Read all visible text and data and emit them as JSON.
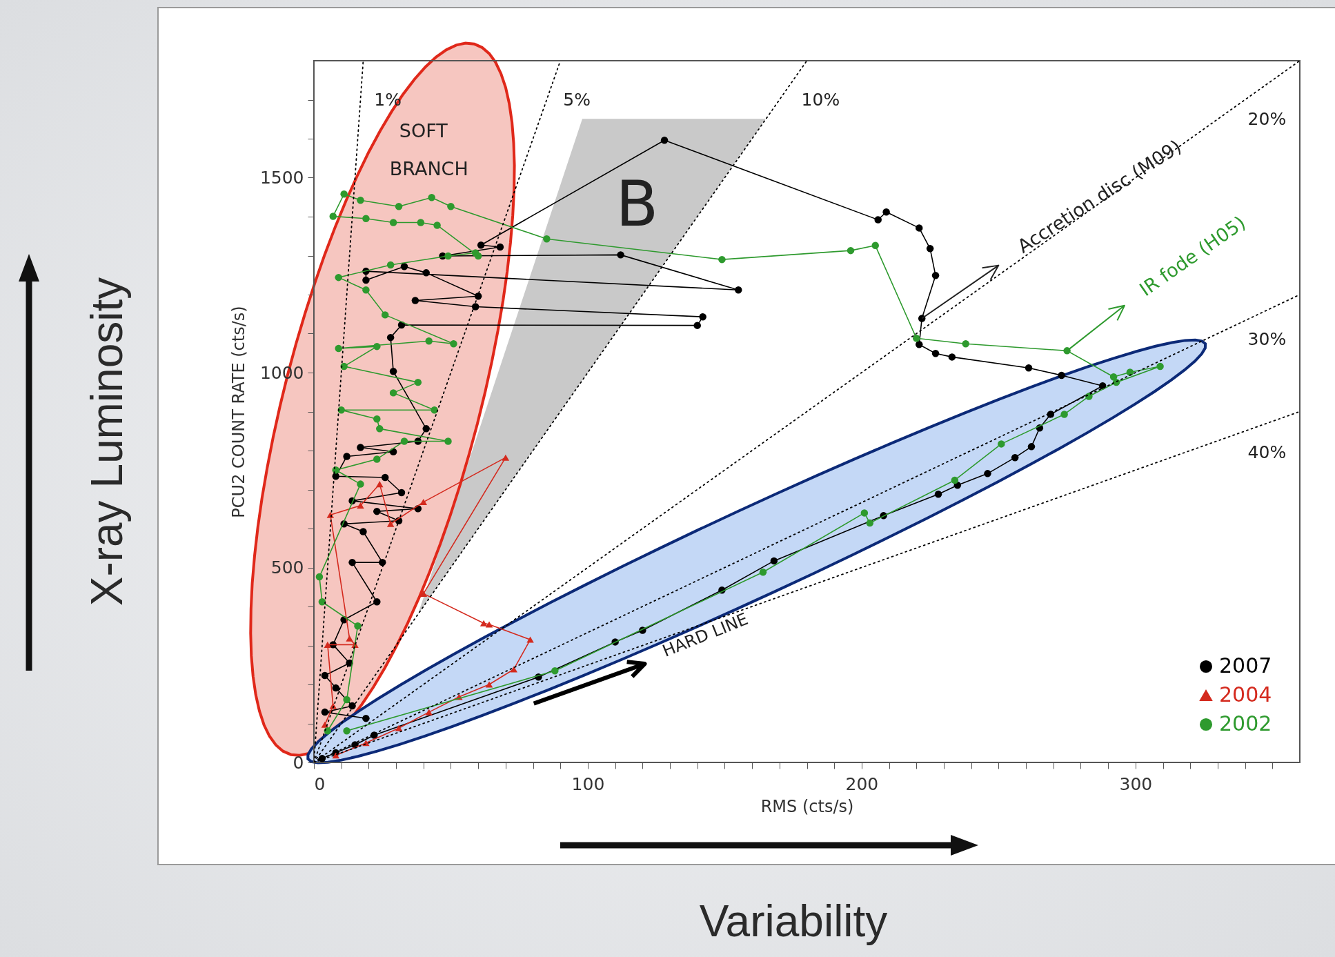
{
  "chart_data": {
    "type": "line",
    "xlabel": "RMS (cts/s)",
    "ylabel": "PCU2 COUNT RATE (cts/s)",
    "xlim": [
      0,
      360
    ],
    "ylim": [
      0,
      1800
    ],
    "xticks": [
      0,
      {
        "value": 10,
        "label": null
      },
      {
        "value": 20,
        "label": null
      },
      {
        "value": 30,
        "label": null
      },
      {
        "value": 40,
        "label": null
      },
      {
        "value": 50,
        "label": null
      },
      {
        "value": 60,
        "label": null
      },
      {
        "value": 70,
        "label": null
      },
      {
        "value": 80,
        "label": null
      },
      {
        "value": 90,
        "label": null
      },
      100,
      {
        "value": 110,
        "label": null
      },
      {
        "value": 120,
        "label": null
      },
      {
        "value": 130,
        "label": null
      },
      {
        "value": 140,
        "label": null
      },
      {
        "value": 150,
        "label": null
      },
      {
        "value": 160,
        "label": null
      },
      {
        "value": 170,
        "label": null
      },
      {
        "value": 180,
        "label": null
      },
      {
        "value": 190,
        "label": null
      },
      200,
      {
        "value": 210,
        "label": null
      },
      {
        "value": 220,
        "label": null
      },
      {
        "value": 230,
        "label": null
      },
      {
        "value": 240,
        "label": null
      },
      {
        "value": 250,
        "label": null
      },
      {
        "value": 260,
        "label": null
      },
      {
        "value": 270,
        "label": null
      },
      {
        "value": 280,
        "label": null
      },
      {
        "value": 290,
        "label": null
      },
      300,
      {
        "value": 310,
        "label": null
      },
      {
        "value": 320,
        "label": null
      },
      {
        "value": 330,
        "label": null
      },
      {
        "value": 340,
        "label": null
      },
      {
        "value": 350,
        "label": null
      }
    ],
    "yticks": [
      0,
      {
        "value": 100,
        "label": null
      },
      {
        "value": 200,
        "label": null
      },
      {
        "value": 300,
        "label": null
      },
      {
        "value": 400,
        "label": null
      },
      500,
      {
        "value": 600,
        "label": null
      },
      {
        "value": 700,
        "label": null
      },
      {
        "value": 800,
        "label": null
      },
      {
        "value": 900,
        "label": null
      },
      1000,
      {
        "value": 1100,
        "label": null
      },
      {
        "value": 1200,
        "label": null
      },
      {
        "value": 1300,
        "label": null
      },
      {
        "value": 1400,
        "label": null
      },
      1500,
      {
        "value": 1600,
        "label": null
      },
      {
        "value": 1700,
        "label": null
      }
    ],
    "grid": false,
    "legend": "bottom right",
    "series": [
      {
        "name": "2007",
        "color": "#000000",
        "marker": "circle",
        "x": [
          3,
          8,
          15,
          22,
          82,
          110,
          120,
          149,
          168,
          208,
          228,
          235,
          246,
          256,
          262,
          265,
          269,
          288,
          273,
          261,
          233,
          227,
          221,
          222,
          227,
          225,
          221,
          209,
          206,
          128,
          61,
          68,
          47,
          112,
          155,
          19,
          19,
          33,
          41,
          60,
          37,
          59,
          142,
          140,
          32,
          28,
          29,
          41,
          38,
          17,
          29,
          12,
          8,
          26,
          32,
          14,
          38,
          23,
          31,
          11,
          18,
          25,
          14,
          23,
          11,
          7,
          13,
          4,
          8,
          14,
          4,
          19
        ],
        "values": [
          10,
          25,
          45,
          70,
          219,
          309,
          339,
          442,
          517,
          633,
          688,
          711,
          741,
          782,
          810,
          858,
          893,
          966,
          993,
          1012,
          1040,
          1049,
          1072,
          1139,
          1249,
          1318,
          1371,
          1412,
          1392,
          1596,
          1327,
          1322,
          1299,
          1302,
          1212,
          1260,
          1237,
          1272,
          1256,
          1196,
          1185,
          1169,
          1143,
          1121,
          1122,
          1090,
          1003,
          856,
          824,
          808,
          797,
          785,
          734,
          731,
          692,
          671,
          651,
          644,
          620,
          612,
          592,
          513,
          513,
          412,
          366,
          302,
          255,
          223,
          191,
          145,
          129,
          113
        ]
      },
      {
        "name": "2004",
        "color": "#d42a1e",
        "marker": "triangle",
        "x": [
          4,
          7,
          5,
          15,
          13,
          6,
          17,
          24,
          28,
          40,
          70,
          40,
          62,
          64,
          79,
          73,
          64,
          53,
          42,
          31,
          19,
          8
        ],
        "values": [
          97,
          145,
          302,
          302,
          318,
          635,
          659,
          714,
          612,
          668,
          782,
          433,
          357,
          354,
          315,
          239,
          200,
          168,
          129,
          88,
          50,
          18
        ]
      },
      {
        "name": "2002",
        "color": "#2e9a2e",
        "marker": "circle",
        "x": [
          5,
          12,
          16,
          3,
          2,
          17,
          8,
          23,
          33,
          49,
          24,
          23,
          10,
          44,
          29,
          38,
          11,
          23,
          9,
          42,
          51,
          26,
          19,
          9,
          28,
          49,
          59,
          60,
          45,
          39,
          29,
          19,
          7,
          11,
          17,
          31,
          43,
          50,
          85,
          149,
          196,
          205,
          220,
          238,
          275,
          292,
          298,
          309,
          293,
          283,
          274,
          251,
          234,
          203,
          201,
          164,
          88,
          12
        ],
        "values": [
          81,
          161,
          350,
          412,
          476,
          714,
          750,
          778,
          824,
          824,
          856,
          881,
          904,
          904,
          948,
          975,
          1016,
          1067,
          1062,
          1081,
          1074,
          1148,
          1212,
          1244,
          1276,
          1299,
          1307,
          1299,
          1378,
          1385,
          1385,
          1395,
          1401,
          1458,
          1442,
          1426,
          1449,
          1426,
          1343,
          1290,
          1313,
          1326,
          1088,
          1074,
          1056,
          989,
          1001,
          1016,
          975,
          939,
          893,
          817,
          724,
          614,
          640,
          488,
          235,
          81
        ]
      },
      {
        "type": "line",
        "color": "#000000",
        "marker": "none",
        "line_style": "dotted",
        "x": [
          0,
          18
        ],
        "values": [
          0,
          1800
        ]
      },
      {
        "type": "line",
        "color": "#000000",
        "marker": "none",
        "line_style": "dotted",
        "x": [
          0,
          90
        ],
        "values": [
          0,
          1800
        ]
      },
      {
        "type": "line",
        "color": "#000000",
        "marker": "none",
        "line_style": "dotted",
        "x": [
          0,
          180
        ],
        "values": [
          0,
          1800
        ]
      },
      {
        "type": "line",
        "color": "#000000",
        "marker": "none",
        "line_style": "dotted",
        "x": [
          0,
          360
        ],
        "values": [
          0,
          1800
        ]
      },
      {
        "type": "line",
        "color": "#000000",
        "marker": "none",
        "line_style": "dotted",
        "x": [
          0,
          360
        ],
        "values": [
          0,
          1200
        ]
      },
      {
        "type": "line",
        "color": "#000000",
        "marker": "none",
        "line_style": "dotted",
        "x": [
          0,
          360
        ],
        "values": [
          0,
          900
        ]
      }
    ],
    "annotations": [
      "1%",
      "5%",
      "10%",
      "20%",
      "30%",
      "40%",
      "SOFT",
      "BRANCH",
      "B",
      {
        "text": "Accretion disc (M09)",
        "x": 222,
        "y": 1139
      },
      {
        "text": "IR fode (H05)",
        "x": 275,
        "y": 1056
      },
      "HARD LINE",
      "X-ray Luminosity",
      "Variability"
    ]
  }
}
